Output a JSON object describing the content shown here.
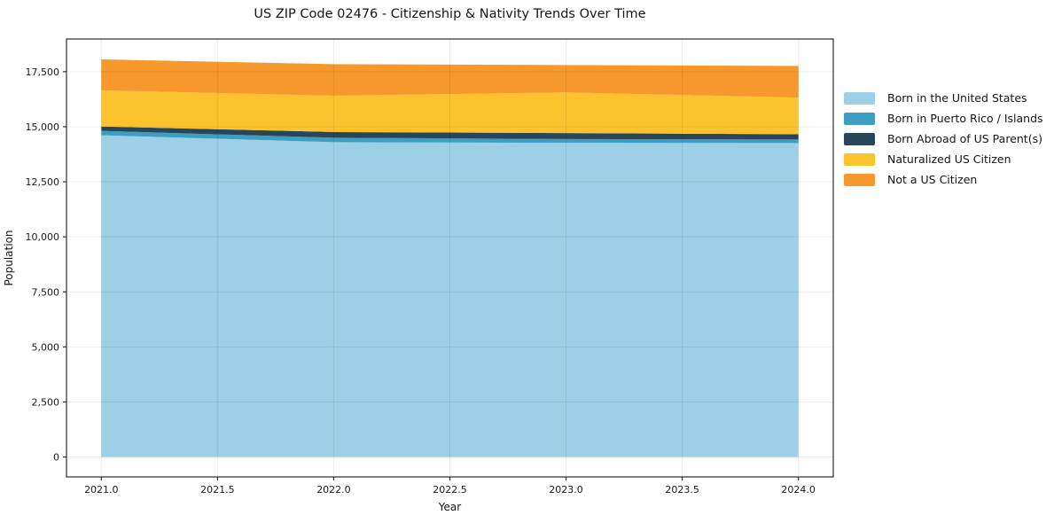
{
  "title": "US ZIP Code 02476 - Citizenship & Nativity Trends Over Time",
  "chart_data": {
    "type": "area",
    "stacked": true,
    "title": "US ZIP Code 02476 - Citizenship & Nativity Trends Over Time",
    "xlabel": "Year",
    "ylabel": "Population",
    "x": [
      2021,
      2022,
      2023,
      2024
    ],
    "series": [
      {
        "name": "Born in the United States",
        "color": "#9dcfe7",
        "values": [
          14610,
          14300,
          14270,
          14260
        ]
      },
      {
        "name": "Born in Puerto Rico / Islands",
        "color": "#3d9ec0",
        "values": [
          200,
          200,
          170,
          160
        ]
      },
      {
        "name": "Born Abroad of US Parent(s)",
        "color": "#27465b",
        "values": [
          200,
          260,
          270,
          240
        ]
      },
      {
        "name": "Naturalized US Citizen",
        "color": "#fcc32e",
        "values": [
          1640,
          1650,
          1850,
          1660
        ]
      },
      {
        "name": "Not a US Citizen",
        "color": "#f6982b",
        "values": [
          1410,
          1430,
          1240,
          1440
        ]
      }
    ],
    "stack_totals": [
      18060,
      17840,
      17800,
      17760
    ],
    "xlim": [
      2020.85,
      2024.15
    ],
    "ylim": [
      -904,
      18984
    ],
    "xticks": [
      2021.0,
      2021.5,
      2022.0,
      2022.5,
      2023.0,
      2023.5,
      2024.0
    ],
    "xtick_labels": [
      "2021.0",
      "2021.5",
      "2022.0",
      "2022.5",
      "2023.0",
      "2023.5",
      "2024.0"
    ],
    "yticks": [
      0,
      2500,
      5000,
      7500,
      10000,
      12500,
      15000,
      17500
    ],
    "ytick_labels": [
      "0",
      "2,500",
      "5,000",
      "7,500",
      "10,000",
      "12,500",
      "15,000",
      "17,500"
    ],
    "grid": true,
    "legend_position": "right of plot, top",
    "colors": {
      "grid_over_fill": "rgba(0,0,0,0.07)",
      "spine": "#2b2b2b",
      "tick_text": "#1a1a1a",
      "background": "#ffffff"
    }
  }
}
